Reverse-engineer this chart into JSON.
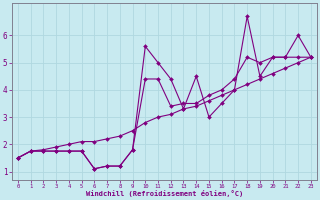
{
  "background_color": "#c8eaf0",
  "grid_color": "#b0d8e0",
  "line_color": "#800080",
  "marker_color": "#800080",
  "xlabel": "Windchill (Refroidissement éolien,°C)",
  "xlabel_color": "#800080",
  "xlim": [
    -0.5,
    23.5
  ],
  "ylim": [
    0.7,
    7.2
  ],
  "xticks": [
    0,
    1,
    2,
    3,
    4,
    5,
    6,
    7,
    8,
    9,
    10,
    11,
    12,
    13,
    14,
    15,
    16,
    17,
    18,
    19,
    20,
    21,
    22,
    23
  ],
  "yticks": [
    1,
    2,
    3,
    4,
    5,
    6
  ],
  "tick_color": "#800080",
  "series1": [
    1.5,
    1.75,
    1.75,
    1.75,
    1.75,
    1.75,
    1.1,
    1.2,
    1.2,
    1.8,
    5.6,
    5.0,
    4.4,
    3.3,
    4.5,
    3.0,
    3.5,
    4.0,
    6.7,
    4.5,
    5.2,
    5.2,
    6.0,
    5.2
  ],
  "series2": [
    1.5,
    1.75,
    1.75,
    1.75,
    1.75,
    1.75,
    1.1,
    1.2,
    1.2,
    1.8,
    4.4,
    4.4,
    3.4,
    3.5,
    3.5,
    3.8,
    4.0,
    4.4,
    5.2,
    5.0,
    5.2,
    5.2,
    5.2,
    5.2
  ],
  "series3": [
    1.5,
    1.75,
    1.8,
    1.9,
    2.0,
    2.1,
    2.1,
    2.2,
    2.3,
    2.5,
    2.8,
    3.0,
    3.1,
    3.3,
    3.4,
    3.6,
    3.8,
    4.0,
    4.2,
    4.4,
    4.6,
    4.8,
    5.0,
    5.2
  ],
  "x_values": [
    0,
    1,
    2,
    3,
    4,
    5,
    6,
    7,
    8,
    9,
    10,
    11,
    12,
    13,
    14,
    15,
    16,
    17,
    18,
    19,
    20,
    21,
    22,
    23
  ]
}
